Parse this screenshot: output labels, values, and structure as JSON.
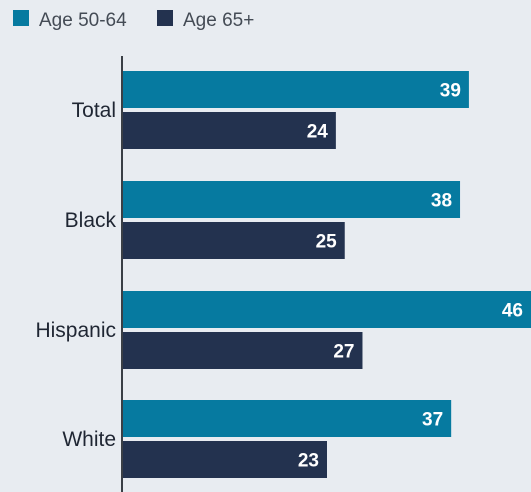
{
  "colors": {
    "age_50_64": "#067aa0",
    "age_65_plus": "#23324f",
    "axis": "#3a3f46",
    "background": "#e8ecf1"
  },
  "chart_data": {
    "type": "bar",
    "orientation": "horizontal",
    "categories": [
      "Total",
      "Black",
      "Hispanic",
      "White"
    ],
    "series": [
      {
        "name": "Age 50-64",
        "values": [
          39,
          38,
          46,
          37
        ]
      },
      {
        "name": "Age 65+",
        "values": [
          24,
          25,
          27,
          23
        ]
      }
    ],
    "xlim": [
      0,
      46
    ],
    "grid": false,
    "legend": "top-left"
  }
}
